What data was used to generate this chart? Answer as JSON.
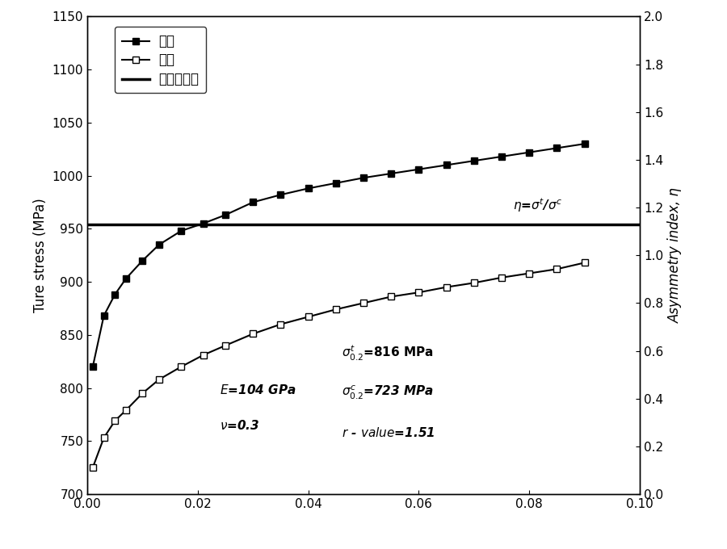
{
  "title": "",
  "xlabel": "",
  "ylabel_left": "Ture stress (MPa)",
  "ylabel_right": "Asymmetry index, η",
  "xlim": [
    0.0,
    0.1
  ],
  "ylim_left": [
    700,
    1150
  ],
  "ylim_right": [
    0.0,
    2.0
  ],
  "xticks": [
    0.0,
    0.02,
    0.04,
    0.06,
    0.08,
    0.1
  ],
  "yticks_left": [
    700,
    750,
    800,
    850,
    900,
    950,
    1000,
    1050,
    1100,
    1150
  ],
  "yticks_right": [
    0.0,
    0.2,
    0.4,
    0.6,
    0.8,
    1.0,
    1.2,
    1.4,
    1.6,
    1.8,
    2.0
  ],
  "tension_x": [
    0.001,
    0.003,
    0.005,
    0.007,
    0.01,
    0.013,
    0.017,
    0.021,
    0.025,
    0.03,
    0.035,
    0.04,
    0.045,
    0.05,
    0.055,
    0.06,
    0.065,
    0.07,
    0.075,
    0.08,
    0.085,
    0.09
  ],
  "tension_y": [
    820,
    868,
    888,
    903,
    920,
    935,
    948,
    955,
    963,
    975,
    982,
    988,
    993,
    998,
    1002,
    1006,
    1010,
    1014,
    1018,
    1022,
    1026,
    1030
  ],
  "compression_x": [
    0.001,
    0.003,
    0.005,
    0.007,
    0.01,
    0.013,
    0.017,
    0.021,
    0.025,
    0.03,
    0.035,
    0.04,
    0.045,
    0.05,
    0.055,
    0.06,
    0.065,
    0.07,
    0.075,
    0.08,
    0.085,
    0.09
  ],
  "compression_y": [
    725,
    753,
    769,
    779,
    795,
    808,
    820,
    831,
    840,
    851,
    860,
    867,
    874,
    880,
    886,
    890,
    895,
    899,
    904,
    908,
    912,
    918
  ],
  "asymmetry_index_value": 1.13,
  "legend_label_tension": "拉伸",
  "legend_label_compression": "压缩",
  "legend_label_asymmetry": "不对称指数",
  "background_color": "#ffffff",
  "line_color": "#000000"
}
